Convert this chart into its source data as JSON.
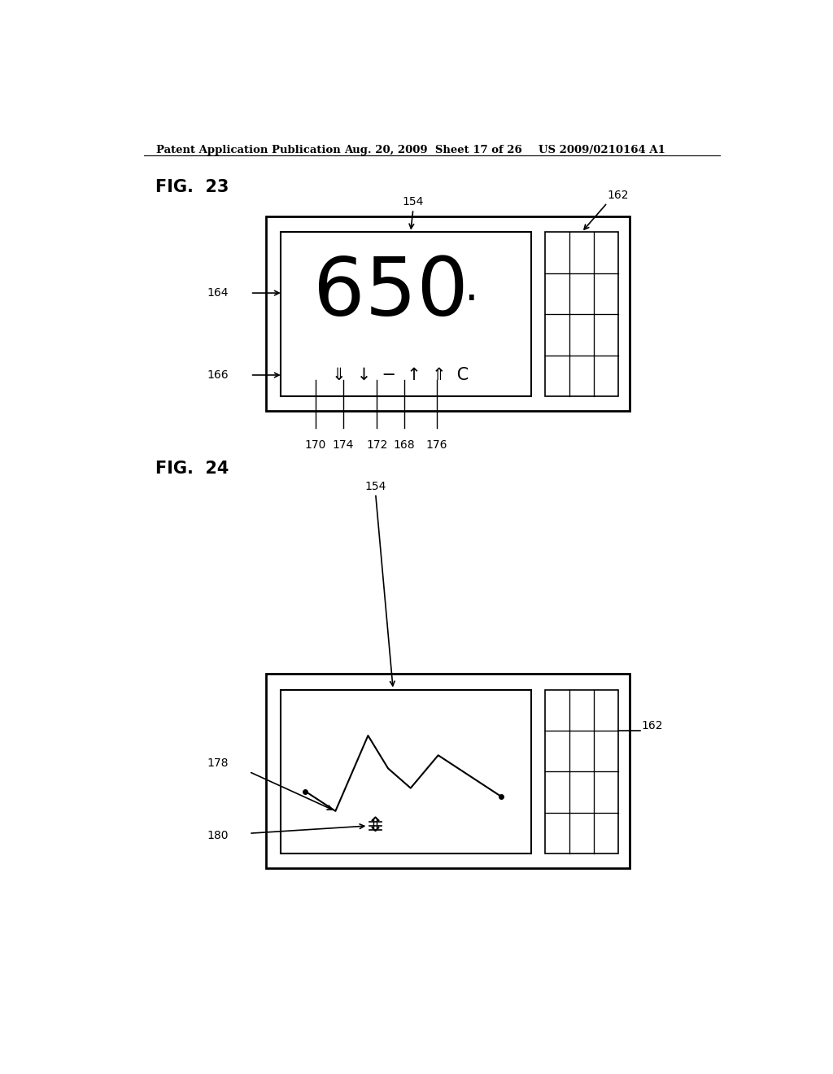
{
  "bg_color": "#ffffff",
  "text_color": "#000000",
  "header_left": "Patent Application Publication",
  "header_mid": "Aug. 20, 2009  Sheet 17 of 26",
  "header_right": "US 2009/0210164 A1",
  "fig23_label": "FIG.  23",
  "fig24_label": "FIG.  24",
  "grid_cols": 3,
  "grid_rows": 4
}
